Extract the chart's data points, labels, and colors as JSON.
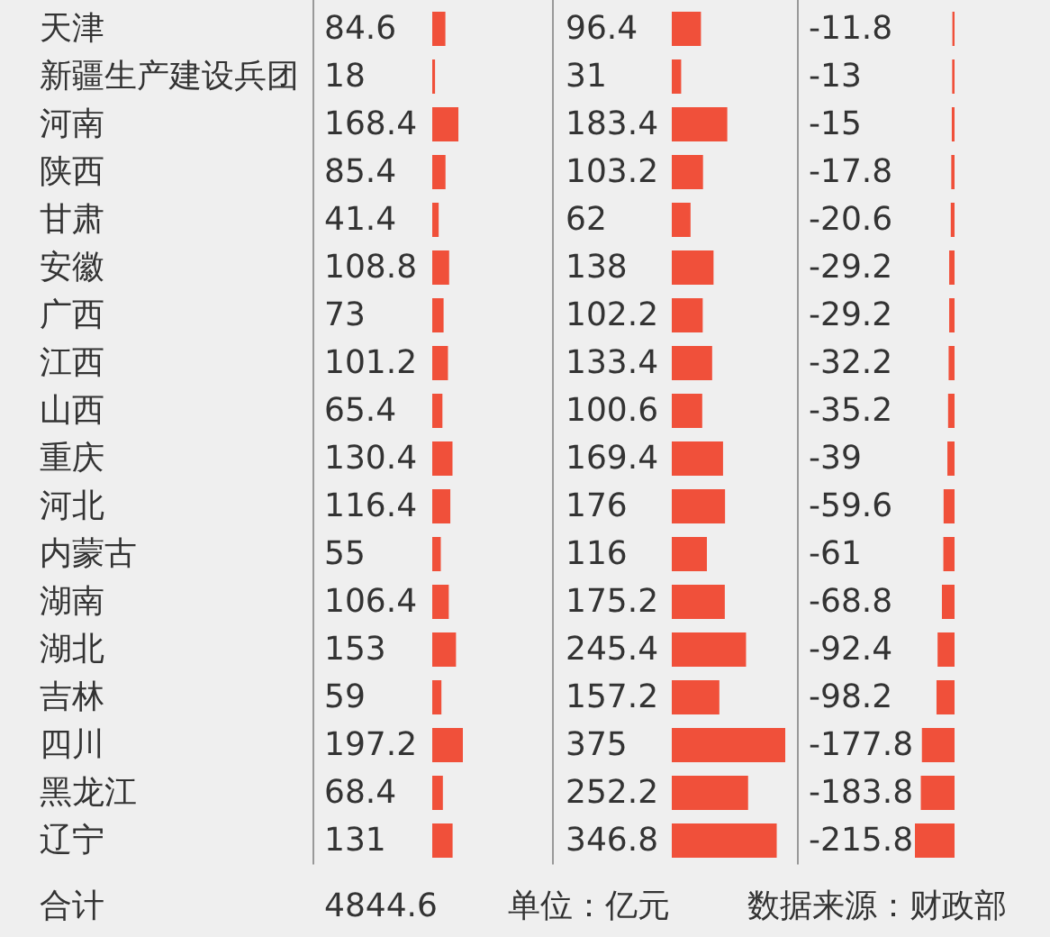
{
  "chart_data": [
    {
      "type": "bar",
      "orientation": "horizontal",
      "categories": [
        "天津",
        "新疆生产建设兵团",
        "河南",
        "陕西",
        "甘肃",
        "安徽",
        "广西",
        "江西",
        "山西",
        "重庆",
        "河北",
        "内蒙古",
        "湖南",
        "湖北",
        "吉林",
        "四川",
        "黑龙江",
        "辽宁"
      ],
      "values": [
        84.6,
        18,
        168.4,
        85.4,
        41.4,
        108.8,
        73,
        101.2,
        65.4,
        130.4,
        116.4,
        55,
        106.4,
        153,
        59,
        197.2,
        68.4,
        131
      ],
      "color": "#f0503a",
      "data_labels": true,
      "tick_labels": "y",
      "annotations": [
        "合计",
        "4844.6",
        "单位：亿元",
        "数据来源：财政部"
      ]
    },
    {
      "type": "bar",
      "orientation": "horizontal",
      "categories": [
        null,
        null,
        null,
        null,
        null,
        null,
        null,
        null,
        null,
        null,
        null,
        null,
        null,
        null,
        null,
        null,
        null,
        null
      ],
      "values": [
        96.4,
        31,
        183.4,
        103.2,
        62,
        138,
        102.2,
        133.4,
        100.6,
        169.4,
        176,
        116,
        175.2,
        245.4,
        157.2,
        375,
        252.2,
        346.8
      ],
      "color": "#f0503a",
      "data_labels": true,
      "tick_labels": false
    },
    {
      "type": "bar",
      "orientation": "horizontal",
      "categories": [
        null,
        null,
        null,
        null,
        null,
        null,
        null,
        null,
        null,
        null,
        null,
        null,
        null,
        null,
        null,
        null,
        null,
        null
      ],
      "values": [
        -11.8,
        -13,
        -15,
        -17.8,
        -20.6,
        -29.2,
        -29.2,
        -32.2,
        -35.2,
        -39,
        -59.6,
        -61,
        -68.8,
        -92.4,
        -98.2,
        -177.8,
        -183.8,
        -215.8
      ],
      "color": "#f0503a",
      "data_labels": true,
      "tick_labels": false
    }
  ]
}
